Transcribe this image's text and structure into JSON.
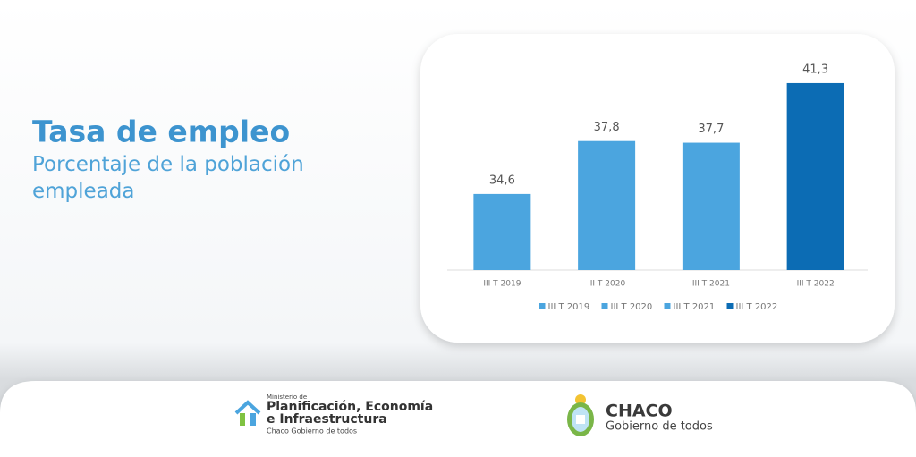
{
  "chart_data": {
    "type": "bar",
    "title": "Tasa de empleo",
    "subtitle": "Porcentaje de la población empleada",
    "categories": [
      "III T 2019",
      "III T 2020",
      "III T 2021",
      "III T 2022"
    ],
    "values": [
      34.6,
      37.8,
      37.7,
      41.3
    ],
    "value_labels": [
      "34,6",
      "37,8",
      "37,7",
      "41,3"
    ],
    "colors": [
      "#4ba5df",
      "#4ba5df",
      "#4ba5df",
      "#0c6cb4"
    ],
    "ylim": [
      30,
      42
    ],
    "legend": "bottom"
  },
  "footer": {
    "ministry_prefix": "Ministerio de",
    "ministry_line1": "Planificación, Economía",
    "ministry_line2": "e Infraestructura",
    "ministry_tagline": "Chaco Gobierno de todos",
    "province": "CHACO",
    "province_tagline": "Gobierno de todos"
  }
}
